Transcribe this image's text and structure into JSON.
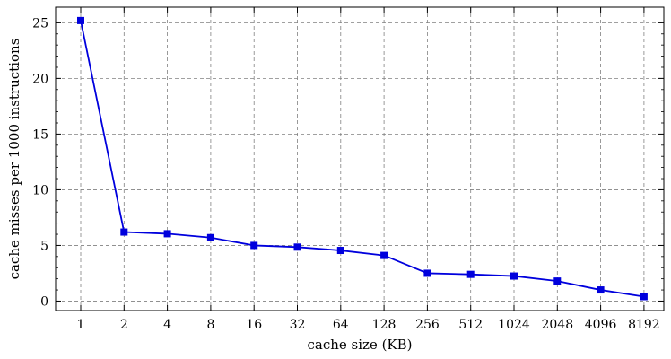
{
  "chart_data": {
    "type": "line",
    "xlabel": "cache size (KB)",
    "ylabel": "cache misses per 1000 instructions",
    "categories": [
      "1",
      "2",
      "4",
      "8",
      "16",
      "32",
      "64",
      "128",
      "256",
      "512",
      "1024",
      "2048",
      "4096",
      "8192"
    ],
    "series": [
      {
        "values": [
          25.2,
          6.2,
          6.05,
          5.7,
          5.0,
          4.85,
          4.55,
          4.1,
          2.5,
          2.4,
          2.25,
          1.8,
          1.0,
          0.4
        ],
        "color": "#0000dd",
        "marker": "square"
      }
    ],
    "yticks": [
      0,
      5,
      10,
      15,
      20,
      25
    ],
    "ylim": [
      -0.85,
      26.4
    ],
    "grid": true
  }
}
